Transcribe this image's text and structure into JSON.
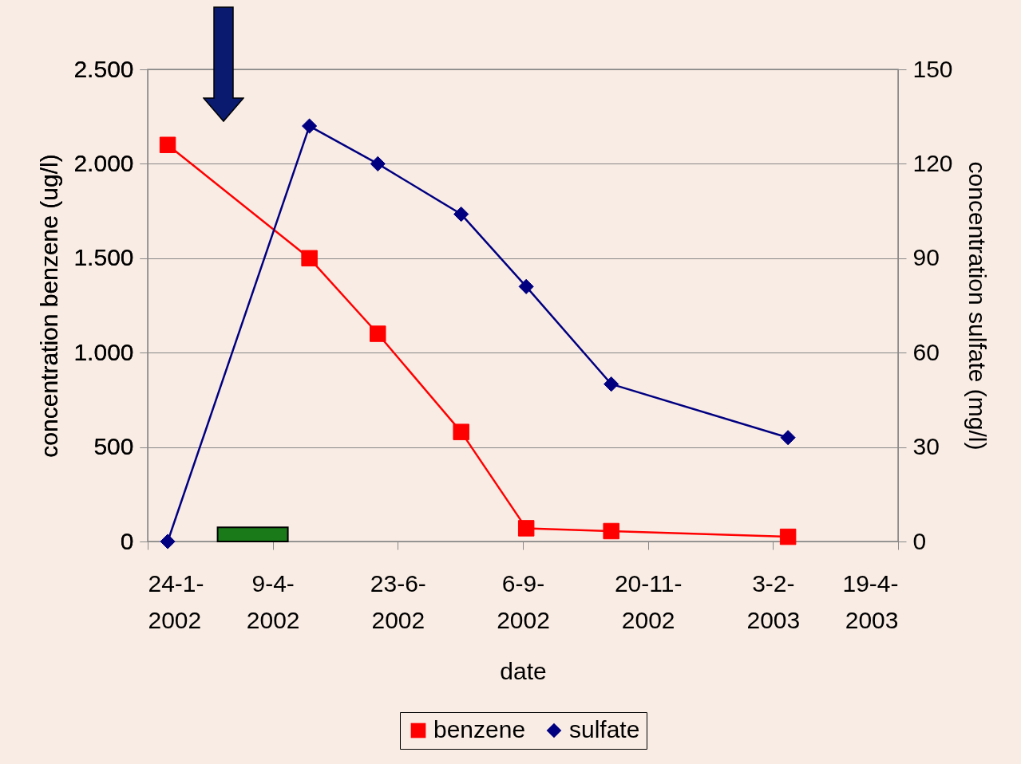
{
  "chart_data": {
    "type": "line",
    "xlabel": "date",
    "ylabel": "concentration benzene (ug/l)",
    "y2label": "concentration sulfate (mg/l)",
    "x": [
      "2002-02-05",
      "2002-05-01",
      "2002-06-11",
      "2002-07-31",
      "2002-09-08",
      "2002-10-29",
      "2003-02-12"
    ],
    "series": [
      {
        "name": "benzene",
        "color": "#ff0000",
        "marker": "square",
        "values": [
          2100,
          1500,
          1100,
          580,
          70,
          55,
          25
        ]
      },
      {
        "name": "sulfate",
        "color": "#000080",
        "marker": "diamond",
        "axis": "y2",
        "values": [
          0,
          132,
          120,
          104,
          81,
          50,
          33
        ]
      },
      {
        "type": "bar",
        "color": "#1a7a1a",
        "x": [
          "2002-03-28"
        ],
        "values": [
          75
        ]
      }
    ],
    "xlim": [
      "2002-01-24",
      "2003-04-19"
    ],
    "xticks": [
      {
        "value": "2002-01-24",
        "label": "24-1-2002"
      },
      {
        "value": "2002-04-09",
        "label": "9-4-2002"
      },
      {
        "value": "2002-06-23",
        "label": "23-6-2002"
      },
      {
        "value": "2002-09-06",
        "label": "6-9-2002"
      },
      {
        "value": "2002-11-20",
        "label": "20-11-2002"
      },
      {
        "value": "2003-02-03",
        "label": "3-2-2003"
      },
      {
        "value": "2003-04-19",
        "label": "19-4-2003"
      }
    ],
    "ylim": [
      0,
      2500
    ],
    "yticks": [
      0,
      500,
      {
        "value": 1000,
        "label": "1.000"
      },
      {
        "value": 1500,
        "label": "1.500"
      },
      {
        "value": 2000,
        "label": "2.000"
      },
      {
        "value": 2500,
        "label": "2.500"
      }
    ],
    "y2lim": [
      0,
      150
    ],
    "y2ticks": [
      0,
      30,
      60,
      90,
      120,
      150
    ],
    "grid": "y",
    "legend": "bottom"
  }
}
